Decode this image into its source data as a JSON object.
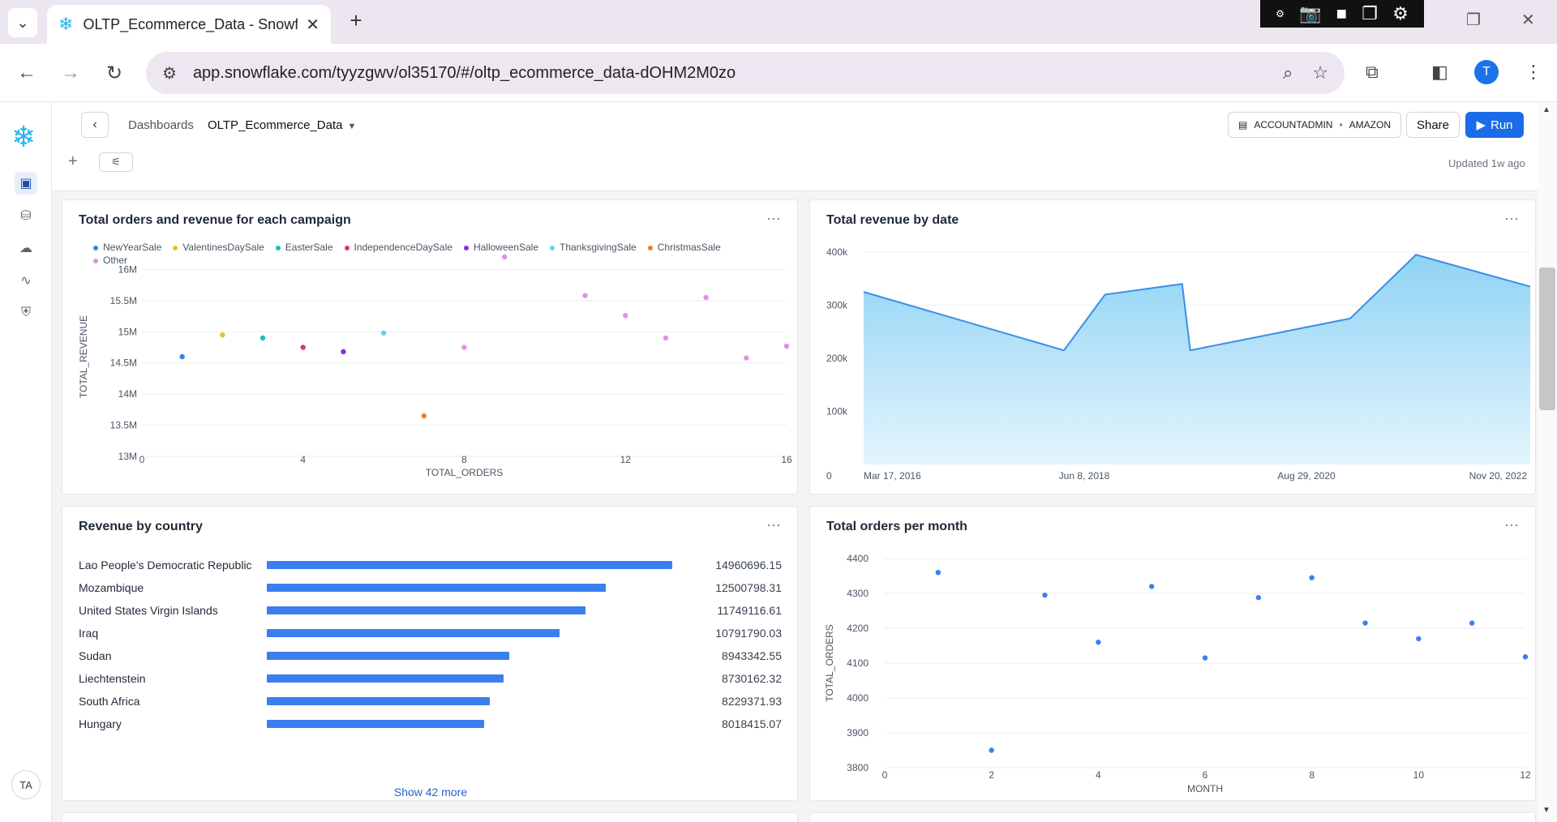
{
  "browser": {
    "tab_title": "OLTP_Ecommerce_Data - Snowf",
    "url": "app.snowflake.com/tyyzgwv/ol35170/#/oltp_ecommerce_data-dOHM2M0zo",
    "profile_initial": "T"
  },
  "rail": {
    "avatar": "TA"
  },
  "header": {
    "breadcrumb_root": "Dashboards",
    "breadcrumb_current": "OLTP_Ecommerce_Data",
    "role": "ACCOUNTADMIN",
    "warehouse": "AMAZON",
    "share_label": "Share",
    "run_label": "Run",
    "updated": "Updated 1w ago"
  },
  "cards": {
    "campaign": {
      "title": "Total orders and revenue for each campaign",
      "more": "···"
    },
    "revenue_date": {
      "title": "Total revenue by date",
      "more": "···"
    },
    "country": {
      "title": "Revenue by country",
      "more": "···",
      "show_more": "Show 42 more"
    },
    "orders_month": {
      "title": "Total orders per month",
      "more": "···"
    }
  },
  "colors": {
    "accent": "#1a6ce8",
    "bar": "#3b7ef0",
    "area_stroke": "#3a8ee6",
    "area_fill_top": "#8fd3f5",
    "area_fill_bottom": "#e4f5fd"
  },
  "chart_data": [
    {
      "id": "campaign",
      "type": "scatter",
      "title": "Total orders and revenue for each campaign",
      "xlabel": "TOTAL_ORDERS",
      "ylabel": "TOTAL_REVENUE",
      "xlim": [
        0,
        16
      ],
      "ylim": [
        13000000,
        16200000
      ],
      "x_ticks": [
        0,
        4,
        8,
        12,
        16
      ],
      "y_ticks": [
        {
          "v": 13000000,
          "l": "13M"
        },
        {
          "v": 13500000,
          "l": "13.5M"
        },
        {
          "v": 14000000,
          "l": "14M"
        },
        {
          "v": 14500000,
          "l": "14.5M"
        },
        {
          "v": 15000000,
          "l": "15M"
        },
        {
          "v": 15500000,
          "l": "15.5M"
        },
        {
          "v": 16000000,
          "l": "16M"
        }
      ],
      "legend": [
        {
          "name": "NewYearSale",
          "color": "#3b7ef0"
        },
        {
          "name": "ValentinesDaySale",
          "color": "#e6c229"
        },
        {
          "name": "EasterSale",
          "color": "#19c2b0"
        },
        {
          "name": "IndependenceDaySale",
          "color": "#e8365d"
        },
        {
          "name": "HalloweenSale",
          "color": "#8a2be2"
        },
        {
          "name": "ThanksgivingSale",
          "color": "#63d3ea"
        },
        {
          "name": "ChristmasSale",
          "color": "#f47b20"
        },
        {
          "name": "Other",
          "color": "#e58ee8"
        }
      ],
      "points": [
        {
          "x": 1,
          "y": 14600000,
          "s": 0
        },
        {
          "x": 2,
          "y": 14950000,
          "s": 1
        },
        {
          "x": 3,
          "y": 14900000,
          "s": 2
        },
        {
          "x": 4,
          "y": 14750000,
          "s": 3
        },
        {
          "x": 5,
          "y": 14680000,
          "s": 4
        },
        {
          "x": 6,
          "y": 14980000,
          "s": 5
        },
        {
          "x": 7,
          "y": 13650000,
          "s": 6
        },
        {
          "x": 8,
          "y": 14750000,
          "s": 7
        },
        {
          "x": 9,
          "y": 16200000,
          "s": 7
        },
        {
          "x": 11,
          "y": 15580000,
          "s": 7
        },
        {
          "x": 12,
          "y": 15260000,
          "s": 7
        },
        {
          "x": 13,
          "y": 14900000,
          "s": 7
        },
        {
          "x": 14,
          "y": 15550000,
          "s": 7
        },
        {
          "x": 15,
          "y": 14580000,
          "s": 7
        },
        {
          "x": 16,
          "y": 14770000,
          "s": 7
        }
      ]
    },
    {
      "id": "revenue_date",
      "type": "area",
      "title": "Total revenue by date",
      "ylim": [
        0,
        400000
      ],
      "y_ticks": [
        {
          "v": 0,
          "l": "0"
        },
        {
          "v": 100000,
          "l": "100k"
        },
        {
          "v": 200000,
          "l": "200k"
        },
        {
          "v": 300000,
          "l": "300k"
        },
        {
          "v": 400000,
          "l": "400k"
        }
      ],
      "x_tick_labels": [
        "Mar 17, 2016",
        "Jun 8, 2018",
        "Aug 29, 2020",
        "Nov 20, 2022"
      ],
      "x_range": [
        "2016-03-17",
        "2022-12-31"
      ],
      "points": [
        {
          "x": "2016-03-17",
          "y": 325000
        },
        {
          "x": "2018-04-01",
          "y": 215000
        },
        {
          "x": "2018-09-01",
          "y": 320000
        },
        {
          "x": "2019-06-15",
          "y": 340000
        },
        {
          "x": "2019-07-15",
          "y": 215000
        },
        {
          "x": "2021-03-01",
          "y": 275000
        },
        {
          "x": "2021-11-01",
          "y": 395000
        },
        {
          "x": "2022-12-31",
          "y": 335000
        }
      ]
    },
    {
      "id": "country",
      "type": "bar",
      "title": "Revenue by country",
      "categories": [
        "Lao People's Democratic Republic",
        "Mozambique",
        "United States Virgin Islands",
        "Iraq",
        "Sudan",
        "Liechtenstein",
        "South Africa",
        "Hungary"
      ],
      "values": [
        "14960696.15",
        "12500798.31",
        "11749116.61",
        "10791790.03",
        "8943342.55",
        "8730162.32",
        "8229371.93",
        "8018415.07"
      ],
      "xlim": [
        0,
        16000000
      ]
    },
    {
      "id": "orders_month",
      "type": "scatter",
      "title": "Total orders per month",
      "xlabel": "MONTH",
      "ylabel": "TOTAL_ORDERS",
      "xlim": [
        0,
        12
      ],
      "ylim": [
        3800,
        4400
      ],
      "x_ticks": [
        0,
        2,
        4,
        6,
        8,
        10,
        12
      ],
      "y_ticks": [
        {
          "v": 3800,
          "l": "3800"
        },
        {
          "v": 3900,
          "l": "3900"
        },
        {
          "v": 4000,
          "l": "4000"
        },
        {
          "v": 4100,
          "l": "4100"
        },
        {
          "v": 4200,
          "l": "4200"
        },
        {
          "v": 4300,
          "l": "4300"
        },
        {
          "v": 4400,
          "l": "4400"
        }
      ],
      "points": [
        {
          "x": 1,
          "y": 4360
        },
        {
          "x": 2,
          "y": 3850
        },
        {
          "x": 3,
          "y": 4295
        },
        {
          "x": 4,
          "y": 4160
        },
        {
          "x": 5,
          "y": 4320
        },
        {
          "x": 6,
          "y": 4115
        },
        {
          "x": 7,
          "y": 4288
        },
        {
          "x": 8,
          "y": 4345
        },
        {
          "x": 9,
          "y": 4215
        },
        {
          "x": 10,
          "y": 4170
        },
        {
          "x": 11,
          "y": 4215
        },
        {
          "x": 12,
          "y": 4118
        }
      ]
    }
  ]
}
